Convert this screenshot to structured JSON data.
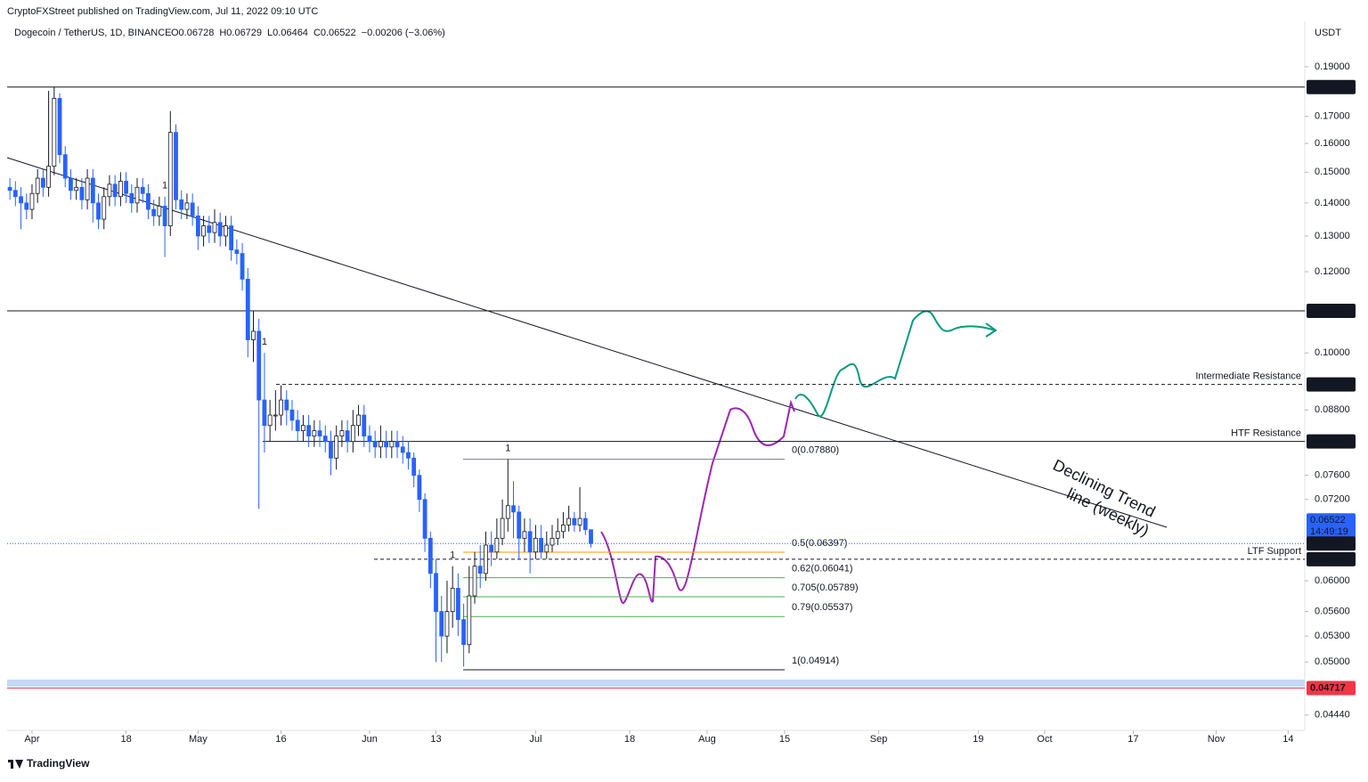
{
  "header": {
    "publisher": "CryptoFXStreet published on TradingView.com, Jul 11, 2022 09:10 UTC"
  },
  "chart_data": {
    "type": "candlestick",
    "symbol": "Dogecoin / TetherUS, 1D, BINANCE",
    "legend": [
      "O0.06728",
      "H0.06729",
      "L0.06464",
      "C0.06522",
      "−0.00206 (−3.06%)"
    ],
    "currency": "USDT",
    "countdown": "14:49:19",
    "branding": "TradingView",
    "log_scale": true,
    "up_color": "#ffffff",
    "down_color": "#2962ff",
    "xlim": [
      -4.5,
      230
    ],
    "ylim": [
      0.0429,
      0.2207
    ],
    "xticks": [
      {
        "value": 0,
        "label": "Apr"
      },
      {
        "value": 17,
        "label": "18"
      },
      {
        "value": 30,
        "label": "May"
      },
      {
        "value": 45,
        "label": "16"
      },
      {
        "value": 61,
        "label": "Jun"
      },
      {
        "value": 73,
        "label": "13"
      },
      {
        "value": 91,
        "label": "Jul"
      },
      {
        "value": 108,
        "label": "18"
      },
      {
        "value": 122,
        "label": "Aug"
      },
      {
        "value": 136,
        "label": "15"
      },
      {
        "value": 153,
        "label": "Sep"
      },
      {
        "value": 171,
        "label": "19"
      },
      {
        "value": 183,
        "label": "Oct"
      },
      {
        "value": 199,
        "label": "17"
      },
      {
        "value": 214,
        "label": "Nov"
      },
      {
        "value": 227,
        "label": "14"
      }
    ],
    "yticks": [
      {
        "value": 0.19,
        "label": "0.19000"
      },
      {
        "value": 0.17,
        "label": "0.17000"
      },
      {
        "value": 0.16,
        "label": "0.16000"
      },
      {
        "value": 0.15,
        "label": "0.15000"
      },
      {
        "value": 0.14,
        "label": "0.14000"
      },
      {
        "value": 0.13,
        "label": "0.13000"
      },
      {
        "value": 0.12,
        "label": "0.12000"
      },
      {
        "value": 0.1,
        "label": "0.10000"
      },
      {
        "value": 0.088,
        "label": "0.08800"
      },
      {
        "value": 0.076,
        "label": "0.07600"
      },
      {
        "value": 0.072,
        "label": "0.07200"
      },
      {
        "value": 0.06,
        "label": "0.06000"
      },
      {
        "value": 0.056,
        "label": "0.05600"
      },
      {
        "value": 0.053,
        "label": "0.05300"
      },
      {
        "value": 0.05,
        "label": "0.05000"
      },
      {
        "value": 0.0444,
        "label": "0.04440"
      }
    ],
    "candles": {
      "x": [
        -4,
        -3,
        -2,
        -1,
        0,
        1,
        2,
        3,
        4,
        5,
        6,
        7,
        8,
        9,
        10,
        11,
        12,
        13,
        14,
        15,
        16,
        17,
        18,
        19,
        20,
        21,
        22,
        23,
        24,
        25,
        26,
        27,
        28,
        29,
        30,
        31,
        32,
        33,
        34,
        35,
        36,
        37,
        38,
        39,
        40,
        41,
        42,
        43,
        44,
        45,
        46,
        47,
        48,
        49,
        50,
        51,
        52,
        53,
        54,
        55,
        56,
        57,
        58,
        59,
        60,
        61,
        62,
        63,
        64,
        65,
        66,
        67,
        68,
        69,
        70,
        71,
        72,
        73,
        74,
        75,
        76,
        77,
        78,
        79,
        80,
        81,
        82,
        83,
        84,
        85,
        86,
        87,
        88,
        89,
        90,
        91,
        92,
        93,
        94,
        95,
        96,
        97,
        98,
        99,
        100,
        101
      ],
      "open": [
        0.145,
        0.144,
        0.142,
        0.14,
        0.138,
        0.143,
        0.148,
        0.145,
        0.152,
        0.177,
        0.156,
        0.148,
        0.144,
        0.145,
        0.141,
        0.148,
        0.14,
        0.135,
        0.142,
        0.146,
        0.142,
        0.147,
        0.143,
        0.14,
        0.145,
        0.143,
        0.138,
        0.136,
        0.139,
        0.133,
        0.164,
        0.141,
        0.138,
        0.14,
        0.136,
        0.13,
        0.133,
        0.131,
        0.134,
        0.13,
        0.133,
        0.126,
        0.125,
        0.118,
        0.103,
        0.105,
        0.09,
        0.085,
        0.087,
        0.087,
        0.09,
        0.088,
        0.086,
        0.084,
        0.085,
        0.083,
        0.084,
        0.083,
        0.082,
        0.079,
        0.083,
        0.084,
        0.082,
        0.085,
        0.087,
        0.083,
        0.082,
        0.081,
        0.082,
        0.081,
        0.082,
        0.081,
        0.08,
        0.079,
        0.076,
        0.072,
        0.066,
        0.061,
        0.056,
        0.053,
        0.056,
        0.059,
        0.055,
        0.052,
        0.058,
        0.062,
        0.061,
        0.065,
        0.064,
        0.066,
        0.069,
        0.071,
        0.07,
        0.066,
        0.067,
        0.064,
        0.066,
        0.064,
        0.065,
        0.066,
        0.067,
        0.068,
        0.069,
        0.068,
        0.069,
        0.06728
      ],
      "high": [
        0.148,
        0.147,
        0.145,
        0.143,
        0.146,
        0.151,
        0.151,
        0.18,
        0.1815,
        0.179,
        0.159,
        0.151,
        0.148,
        0.148,
        0.151,
        0.151,
        0.143,
        0.145,
        0.149,
        0.149,
        0.15,
        0.15,
        0.146,
        0.148,
        0.148,
        0.146,
        0.141,
        0.142,
        0.142,
        0.172,
        0.167,
        0.144,
        0.143,
        0.143,
        0.139,
        0.136,
        0.136,
        0.138,
        0.137,
        0.136,
        0.136,
        0.129,
        0.128,
        0.121,
        0.11,
        0.108,
        0.1,
        0.09,
        0.092,
        0.093,
        0.092,
        0.09,
        0.088,
        0.087,
        0.087,
        0.086,
        0.086,
        0.085,
        0.084,
        0.085,
        0.086,
        0.086,
        0.088,
        0.089,
        0.089,
        0.085,
        0.084,
        0.085,
        0.084,
        0.084,
        0.084,
        0.083,
        0.082,
        0.08,
        0.077,
        0.073,
        0.067,
        0.063,
        0.058,
        0.06,
        0.062,
        0.061,
        0.057,
        0.062,
        0.064,
        0.065,
        0.067,
        0.067,
        0.069,
        0.072,
        0.0788,
        0.075,
        0.071,
        0.069,
        0.069,
        0.068,
        0.068,
        0.067,
        0.068,
        0.069,
        0.07,
        0.071,
        0.07,
        0.074,
        0.07,
        0.06729
      ],
      "low": [
        0.141,
        0.139,
        0.132,
        0.135,
        0.135,
        0.14,
        0.142,
        0.142,
        0.149,
        0.153,
        0.145,
        0.141,
        0.141,
        0.138,
        0.138,
        0.134,
        0.132,
        0.132,
        0.139,
        0.139,
        0.139,
        0.14,
        0.137,
        0.137,
        0.14,
        0.135,
        0.133,
        0.133,
        0.124,
        0.13,
        0.138,
        0.135,
        0.135,
        0.133,
        0.126,
        0.127,
        0.128,
        0.128,
        0.127,
        0.127,
        0.123,
        0.122,
        0.115,
        0.099,
        0.098,
        0.0705,
        0.08,
        0.082,
        0.084,
        0.085,
        0.085,
        0.084,
        0.082,
        0.082,
        0.081,
        0.081,
        0.081,
        0.08,
        0.076,
        0.077,
        0.081,
        0.08,
        0.08,
        0.083,
        0.081,
        0.08,
        0.079,
        0.079,
        0.079,
        0.079,
        0.079,
        0.078,
        0.077,
        0.074,
        0.07,
        0.064,
        0.059,
        0.05,
        0.05,
        0.051,
        0.054,
        0.053,
        0.0495,
        0.051,
        0.057,
        0.059,
        0.06,
        0.062,
        0.063,
        0.065,
        0.067,
        0.066,
        0.063,
        0.064,
        0.061,
        0.063,
        0.063,
        0.063,
        0.064,
        0.065,
        0.066,
        0.067,
        0.067,
        0.067,
        0.0665,
        0.06464
      ],
      "close": [
        0.144,
        0.142,
        0.14,
        0.138,
        0.143,
        0.148,
        0.145,
        0.152,
        0.177,
        0.156,
        0.148,
        0.144,
        0.145,
        0.141,
        0.148,
        0.14,
        0.135,
        0.142,
        0.146,
        0.142,
        0.147,
        0.143,
        0.14,
        0.145,
        0.143,
        0.138,
        0.136,
        0.139,
        0.133,
        0.164,
        0.141,
        0.138,
        0.14,
        0.136,
        0.13,
        0.133,
        0.131,
        0.134,
        0.13,
        0.133,
        0.126,
        0.125,
        0.118,
        0.103,
        0.105,
        0.09,
        0.085,
        0.087,
        0.087,
        0.09,
        0.088,
        0.086,
        0.084,
        0.085,
        0.083,
        0.084,
        0.083,
        0.082,
        0.079,
        0.083,
        0.084,
        0.082,
        0.085,
        0.087,
        0.083,
        0.082,
        0.081,
        0.082,
        0.081,
        0.082,
        0.081,
        0.08,
        0.079,
        0.076,
        0.072,
        0.066,
        0.061,
        0.056,
        0.053,
        0.056,
        0.059,
        0.055,
        0.052,
        0.058,
        0.062,
        0.061,
        0.065,
        0.064,
        0.066,
        0.069,
        0.071,
        0.07,
        0.066,
        0.067,
        0.064,
        0.066,
        0.064,
        0.065,
        0.066,
        0.067,
        0.068,
        0.069,
        0.068,
        0.069,
        0.06728,
        0.06522
      ]
    },
    "markers": [
      {
        "x": 24,
        "text": "1",
        "color": "#089981"
      },
      {
        "x": 42,
        "text": "1",
        "color": "#089981"
      },
      {
        "x": 76,
        "text": "1",
        "color": "#089981"
      },
      {
        "x": 86,
        "text": "1",
        "color": "#f23645"
      }
    ],
    "last_price": 0.06522,
    "last_price_color": "#2962ff",
    "levels": [
      {
        "price": 0.18157,
        "color": "#131722",
        "dashed": false
      },
      {
        "price": {
          "value": 0.1099,
          "label": "0.10990"
        },
        "color": "#131722",
        "dashed": false
      },
      {
        "price": {
          "value": 0.0932,
          "label": "0.09320"
        },
        "color": "#131722",
        "dashed": true,
        "note": "Intermediate Resistance",
        "note_color": "#22a3b3"
      },
      {
        "price": {
          "value": 0.082,
          "label": "0.08200"
        },
        "color": "#131722",
        "dashed": false,
        "note": "HTF Resistance",
        "note_color": "#e91e3a"
      },
      {
        "price": 0.06297,
        "color": "#131722",
        "dashed": true,
        "note": "LTF Support",
        "note_color": "#22a3b3"
      },
      {
        "price": 0.04717,
        "color": "#f23645",
        "dashed": false
      }
    ],
    "fib": [
      {
        "price": 0.0788,
        "label": "0(0.07880)",
        "color": "#787b86"
      },
      {
        "price": 0.06397,
        "label": "0.5(0.06397)",
        "color": "#ff9800"
      },
      {
        "price": 0.06041,
        "label": "0.62(0.06041)",
        "color": "#4caf50"
      },
      {
        "price": 0.05789,
        "label": "0.705(0.05789)",
        "color": "#4caf50"
      },
      {
        "price": 0.05537,
        "label": "0.79(0.05537)",
        "color": "#4caf50"
      },
      {
        "price": 0.04914,
        "label": "1(0.04914)",
        "color": "#131722"
      }
    ],
    "trend_label": [
      "Declining Trend",
      "line (weekly)"
    ]
  }
}
